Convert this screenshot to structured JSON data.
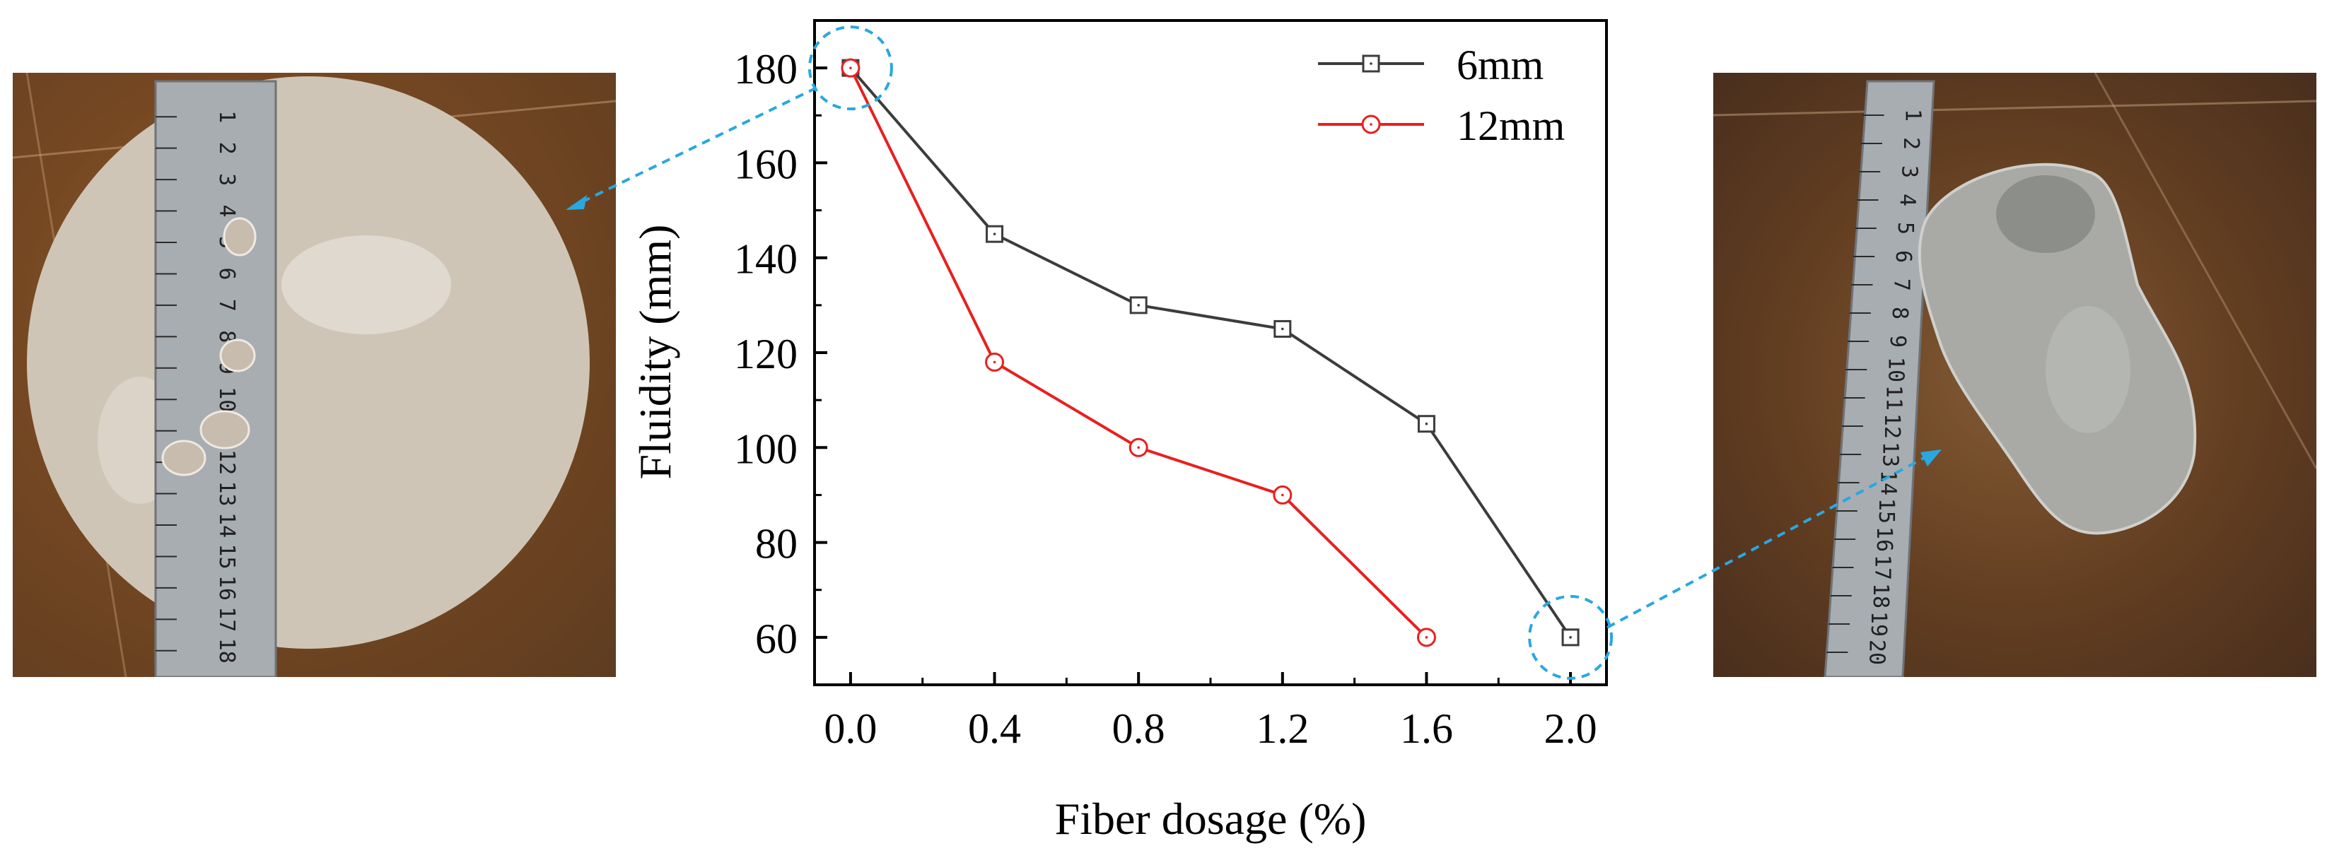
{
  "chart_data": {
    "type": "line",
    "xlabel": "Fiber dosage (%)",
    "ylabel": "Fluidity (mm)",
    "x": [
      0.0,
      0.4,
      0.8,
      1.2,
      1.6,
      2.0
    ],
    "x_tick_labels": [
      "0.0",
      "0.4",
      "0.8",
      "1.2",
      "1.6",
      "2.0"
    ],
    "y_ticks": [
      60,
      80,
      100,
      120,
      140,
      160,
      180
    ],
    "xlim": [
      -0.1,
      2.1
    ],
    "ylim": [
      50,
      190
    ],
    "legend_position": "top-right",
    "series": [
      {
        "name": "6mm",
        "color": "#3c3c3c",
        "marker": "square",
        "values": [
          180,
          145,
          130,
          125,
          105,
          60
        ]
      },
      {
        "name": "12mm",
        "color": "#e8201f",
        "marker": "circle",
        "values": [
          180,
          118,
          100,
          90,
          60,
          null
        ]
      }
    ],
    "annotations": [
      {
        "type": "dashed-circle",
        "x": 0.0,
        "y": 180,
        "color": "#29a8e0",
        "links_to": "left-photo"
      },
      {
        "type": "dashed-circle",
        "x": 2.0,
        "y": 60,
        "color": "#29a8e0",
        "links_to": "right-photo"
      }
    ]
  },
  "photos": {
    "left": {
      "ruler_numbers": [
        "1",
        "2",
        "3",
        "4",
        "5",
        "6",
        "7",
        "8",
        "9",
        "10",
        "11",
        "12",
        "13",
        "14",
        "15",
        "16",
        "17",
        "18"
      ]
    },
    "right": {
      "ruler_numbers": [
        "1",
        "2",
        "3",
        "4",
        "5",
        "6",
        "7",
        "8",
        "9",
        "10",
        "11",
        "12",
        "13",
        "14",
        "15",
        "16",
        "17",
        "18",
        "19",
        "20"
      ]
    }
  }
}
